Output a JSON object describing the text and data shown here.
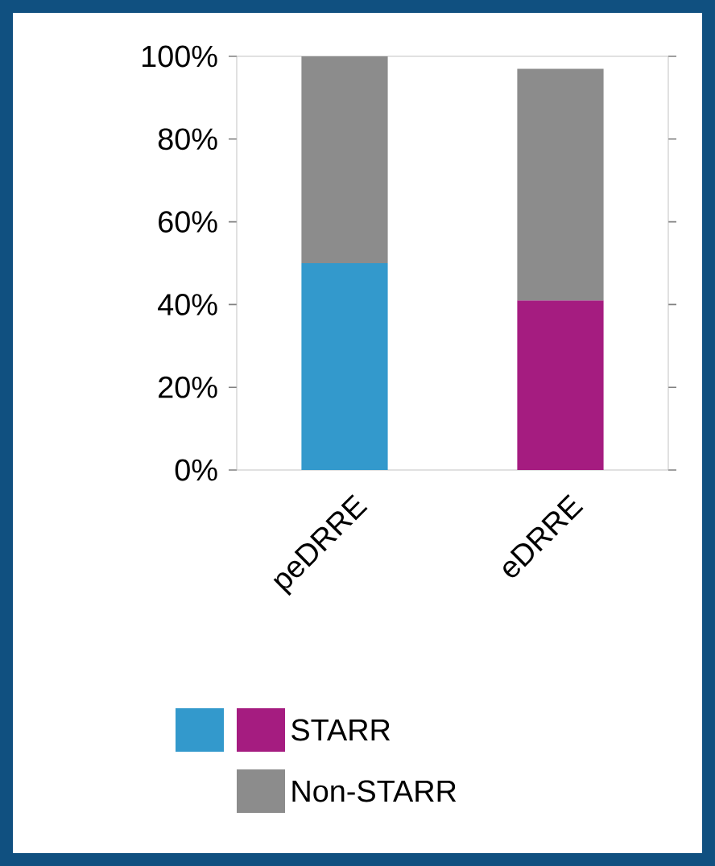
{
  "chart_data": {
    "type": "bar",
    "stacked": true,
    "categories": [
      "peDRRE",
      "eDRRE"
    ],
    "series": [
      {
        "name": "STARR",
        "colors": [
          "#3399cc",
          "#a51c80"
        ],
        "values": [
          50,
          41
        ]
      },
      {
        "name": "Non-STARR",
        "color": "#8c8c8c",
        "values": [
          50,
          56
        ]
      }
    ],
    "ylim": [
      0,
      100
    ],
    "yticks": [
      {
        "value": 0,
        "label": "0%"
      },
      {
        "value": 20,
        "label": "20%"
      },
      {
        "value": 40,
        "label": "40%"
      },
      {
        "value": 60,
        "label": "60%"
      },
      {
        "value": 80,
        "label": "80%"
      },
      {
        "value": 100,
        "label": "100%"
      }
    ],
    "legend": "bottom"
  }
}
